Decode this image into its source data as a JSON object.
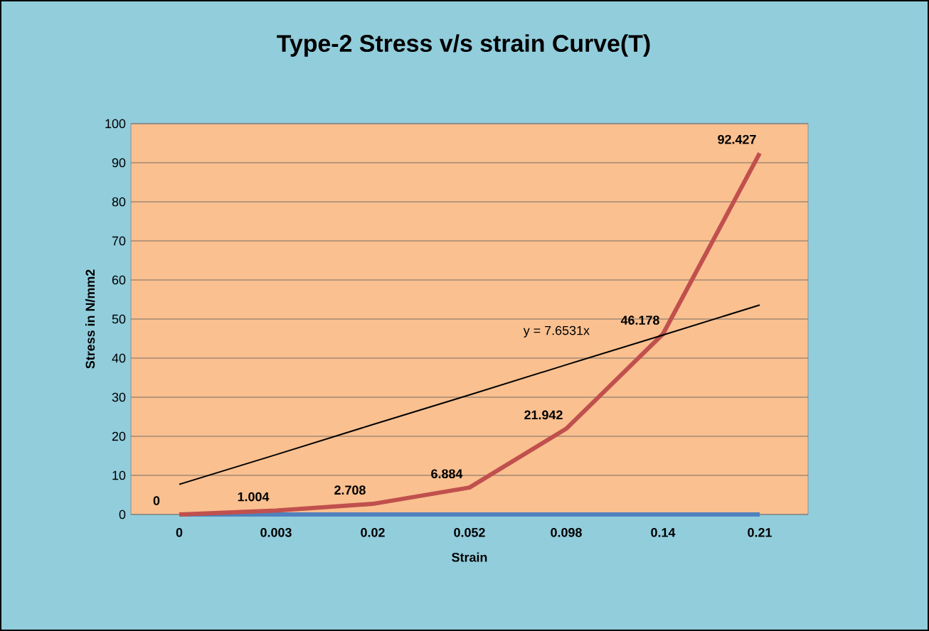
{
  "chart_data": {
    "type": "line",
    "title": "Type-2 Stress v/s strain Curve(T)",
    "xlabel": "Strain",
    "ylabel": "Stress in N/mm2",
    "categories": [
      "0",
      "0.003",
      "0.02",
      "0.052",
      "0.098",
      "0.14",
      "0.21"
    ],
    "series": [
      {
        "color": "#4f81bd",
        "values": [
          0,
          0,
          0,
          0,
          0,
          0,
          0
        ]
      },
      {
        "color": "#c0504d",
        "values": [
          0,
          1.004,
          2.708,
          6.884,
          21.942,
          46.178,
          92.427
        ],
        "value_labels": [
          "0",
          "1.004",
          "2.708",
          "6.884",
          "21.942",
          "46.178",
          "92.427"
        ]
      },
      {
        "color": "#000000",
        "values": [
          7.7,
          15.3,
          23.0,
          30.6,
          38.3,
          45.9,
          53.6
        ]
      }
    ],
    "annotations": [
      "y = 7.6531x"
    ],
    "ylim": [
      0,
      100
    ],
    "yticks": [
      0,
      10,
      20,
      30,
      40,
      50,
      60,
      70,
      80,
      90,
      100
    ],
    "grid": "y",
    "marker": "none",
    "line_style": "solid"
  }
}
